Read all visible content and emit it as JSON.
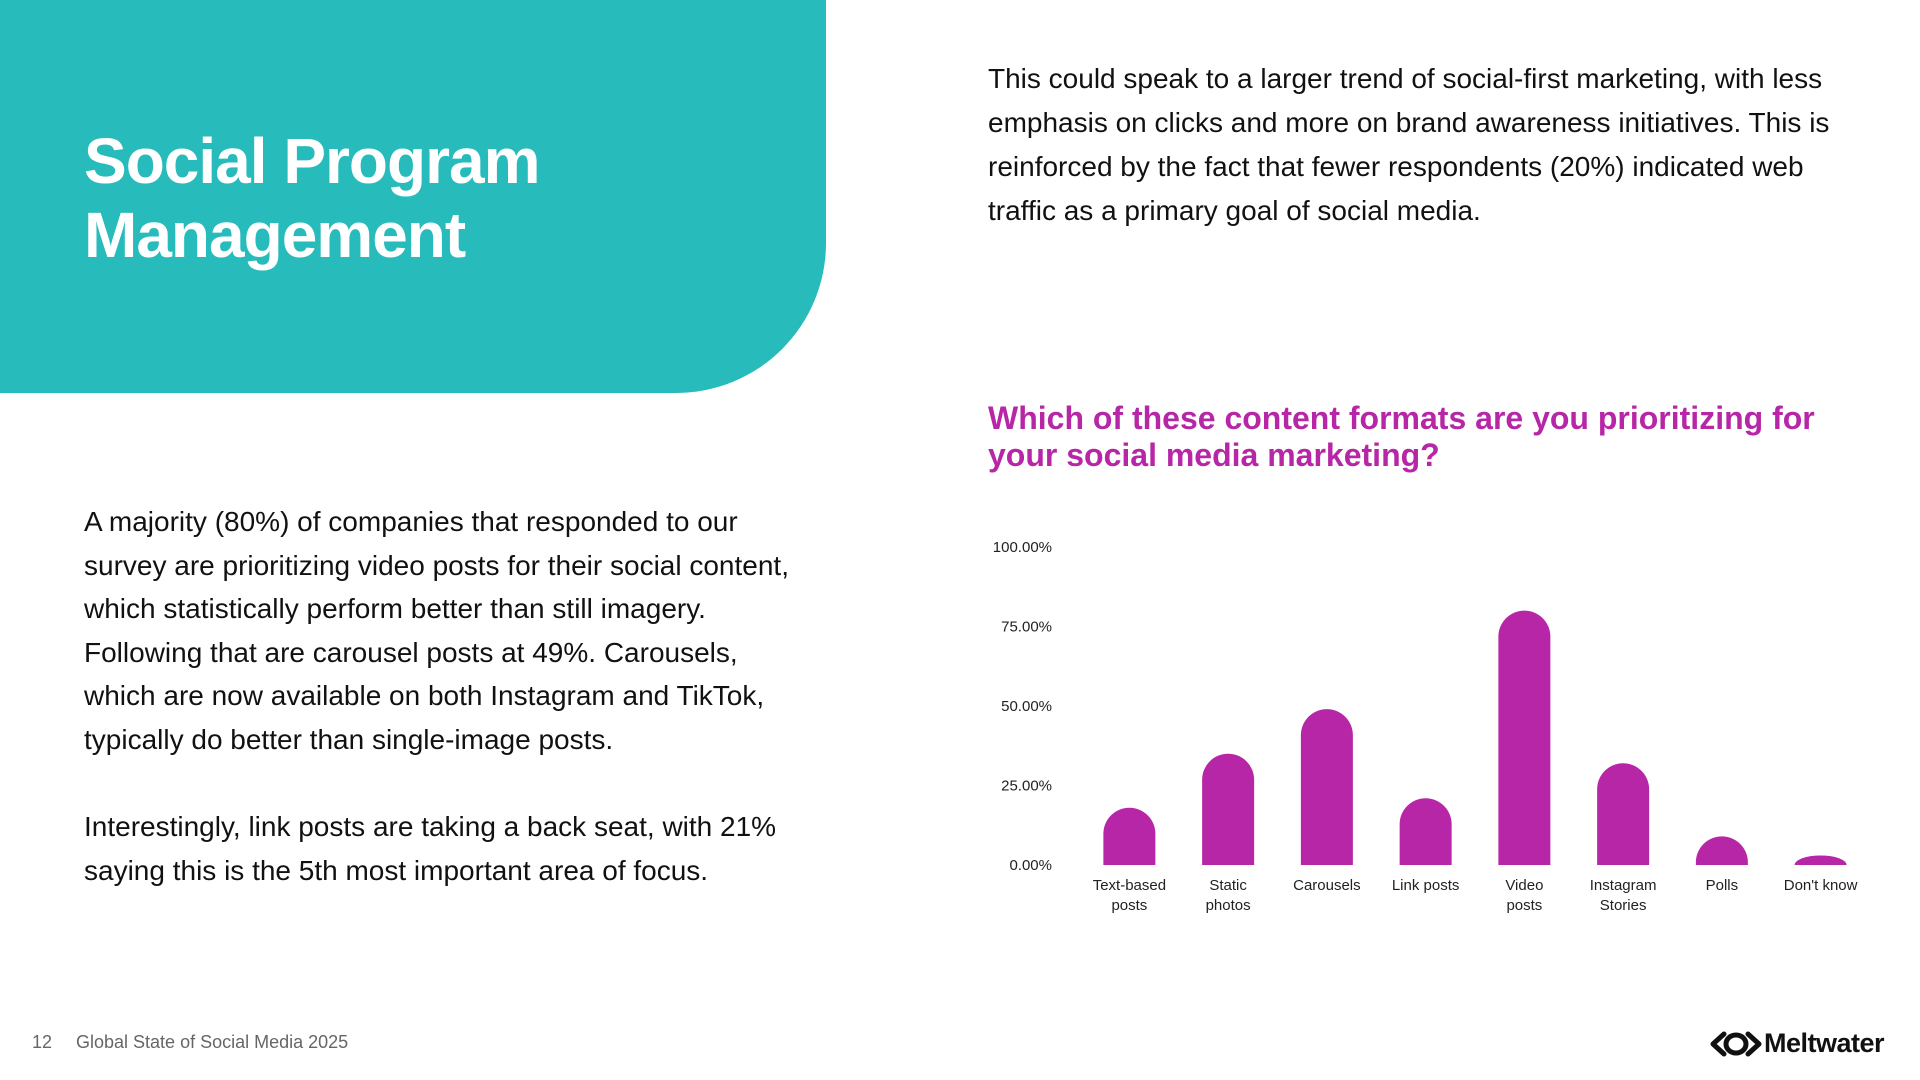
{
  "hero": {
    "title_line1": "Social Program",
    "title_line2": "Management"
  },
  "intro_text": "This could speak to a larger trend of social-first marketing, with less emphasis on clicks and more on brand awareness initiatives. This is reinforced by the fact that fewer respondents (20%) indicated web traffic as a primary goal of social media.",
  "body": {
    "paragraph1": "A majority (80%) of companies that responded to our survey are prioritizing video posts for their social content, which statistically perform better than still imagery. Following that are carousel posts at 49%. Carousels, which are now available on both Instagram and TikTok, typically do better than single-image posts.",
    "paragraph2": "Interestingly, link posts are taking a back seat, with 21% saying this is the 5th most important area of focus."
  },
  "chart_data": {
    "type": "bar",
    "title": "Which of these content formats are you prioritizing for your social media marketing?",
    "categories": [
      [
        "Text-based",
        "posts"
      ],
      [
        "Static",
        "photos"
      ],
      [
        "Carousels"
      ],
      [
        "Link posts"
      ],
      [
        "Video",
        "posts"
      ],
      [
        "Instagram",
        "Stories"
      ],
      [
        "Polls"
      ],
      [
        "Don't know"
      ]
    ],
    "values": [
      18,
      35,
      49,
      21,
      80,
      32,
      9,
      3
    ],
    "yticks": [
      "0.00%",
      "25.00%",
      "50.00%",
      "75.00%",
      "100.00%"
    ],
    "ylim": [
      0,
      100
    ],
    "grid": false,
    "legend": "none",
    "bar_color": "#b626a6"
  },
  "footer": {
    "page_number": "12",
    "label": "Global State of Social Media 2025",
    "logo_text": "Meltwater"
  },
  "colors": {
    "hero_bg": "#27bbbc",
    "accent": "#b626a6"
  }
}
